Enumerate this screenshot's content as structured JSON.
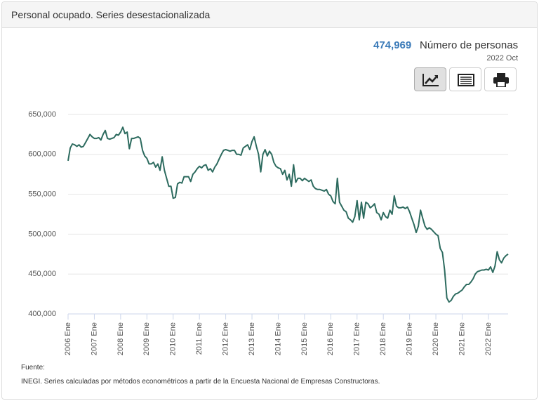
{
  "header": {
    "title": "Personal ocupado. Series desestacionalizada"
  },
  "summary": {
    "value": "474,969",
    "unit": "Número de personas",
    "date": "2022 Oct"
  },
  "chart_data": {
    "type": "line",
    "color": "#2d6b5f",
    "grid": true,
    "categories": [
      "2006 Ene",
      null,
      null,
      null,
      null,
      null,
      null,
      null,
      null,
      null,
      null,
      null,
      "2007 Ene",
      null,
      null,
      null,
      null,
      null,
      null,
      null,
      null,
      null,
      null,
      null,
      "2008 Ene",
      null,
      null,
      null,
      null,
      null,
      null,
      null,
      null,
      null,
      null,
      null,
      "2009 Ene",
      null,
      null,
      null,
      null,
      null,
      null,
      null,
      null,
      null,
      null,
      null,
      "2010 Ene",
      null,
      null,
      null,
      null,
      null,
      null,
      null,
      null,
      null,
      null,
      null,
      "2011 Ene",
      null,
      null,
      null,
      null,
      null,
      null,
      null,
      null,
      null,
      null,
      null,
      "2012 Ene",
      null,
      null,
      null,
      null,
      null,
      null,
      null,
      null,
      null,
      null,
      null,
      "2013 Ene",
      null,
      null,
      null,
      null,
      null,
      null,
      null,
      null,
      null,
      null,
      null,
      "2014 Ene",
      null,
      null,
      null,
      null,
      null,
      null,
      null,
      null,
      null,
      null,
      null,
      "2015 Ene",
      null,
      null,
      null,
      null,
      null,
      null,
      null,
      null,
      null,
      null,
      null,
      "2016 Ene",
      null,
      null,
      null,
      null,
      null,
      null,
      null,
      null,
      null,
      null,
      null,
      "2017 Ene",
      null,
      null,
      null,
      null,
      null,
      null,
      null,
      null,
      null,
      null,
      null,
      "2018 Ene",
      null,
      null,
      null,
      null,
      null,
      null,
      null,
      null,
      null,
      null,
      null,
      "2019 Ene",
      null,
      null,
      null,
      null,
      null,
      null,
      null,
      null,
      null,
      null,
      null,
      "2020 Ene",
      null,
      null,
      null,
      null,
      null,
      null,
      null,
      null,
      null,
      null,
      null,
      "2021 Ene",
      null,
      null,
      null,
      null,
      null,
      null,
      null,
      null,
      null,
      null,
      null,
      "2022 Ene",
      null,
      null,
      null,
      null,
      null,
      null,
      null,
      null,
      null
    ],
    "values": [
      592000,
      608000,
      613000,
      612000,
      610000,
      612000,
      609000,
      610000,
      615000,
      620000,
      625000,
      622000,
      620000,
      620000,
      621000,
      618000,
      625000,
      630000,
      620000,
      619000,
      620000,
      621000,
      625000,
      624000,
      628000,
      634000,
      626000,
      628000,
      607000,
      620000,
      620000,
      621000,
      622000,
      620000,
      605000,
      598000,
      595000,
      588000,
      588000,
      590000,
      584000,
      588000,
      580000,
      597000,
      580000,
      570000,
      560000,
      560000,
      545000,
      546000,
      563000,
      565000,
      564000,
      572000,
      572000,
      572000,
      566000,
      575000,
      578000,
      582000,
      585000,
      583000,
      586000,
      587000,
      580000,
      582000,
      578000,
      584000,
      588000,
      594000,
      600000,
      605000,
      606000,
      605000,
      604000,
      605000,
      605000,
      600000,
      600000,
      599000,
      608000,
      610000,
      612000,
      606000,
      616000,
      622000,
      610000,
      600000,
      578000,
      600000,
      606000,
      598000,
      604000,
      600000,
      590000,
      585000,
      583000,
      582000,
      575000,
      580000,
      568000,
      575000,
      560000,
      587000,
      565000,
      570000,
      570000,
      567000,
      570000,
      568000,
      566000,
      568000,
      560000,
      557000,
      556000,
      556000,
      555000,
      554000,
      556000,
      550000,
      548000,
      541000,
      538000,
      570000,
      540000,
      535000,
      530000,
      528000,
      520000,
      518000,
      515000,
      522000,
      542000,
      518000,
      540000,
      520000,
      540000,
      538000,
      533000,
      535000,
      538000,
      527000,
      525000,
      518000,
      527000,
      522000,
      520000,
      530000,
      525000,
      548000,
      535000,
      533000,
      533000,
      534000,
      532000,
      534000,
      528000,
      520000,
      512000,
      502000,
      510000,
      530000,
      520000,
      510000,
      506000,
      508000,
      506000,
      503000,
      500000,
      498000,
      482000,
      477000,
      455000,
      420000,
      415000,
      417000,
      422000,
      425000,
      426000,
      428000,
      430000,
      434000,
      437000,
      437000,
      440000,
      444000,
      450000,
      453000,
      454000,
      455000,
      455000,
      456000,
      455000,
      459000,
      452000,
      460000,
      478000,
      468000,
      464000,
      470000,
      473000,
      474969
    ],
    "ylim": [
      400000,
      650000
    ],
    "yticks": [
      {
        "value": 400000,
        "label": "400,000"
      },
      {
        "value": 450000,
        "label": "450,000"
      },
      {
        "value": 500000,
        "label": "500,000"
      },
      {
        "value": 550000,
        "label": "550,000"
      },
      {
        "value": 600000,
        "label": "600,000"
      },
      {
        "value": 650000,
        "label": "650,000"
      }
    ]
  },
  "footer": {
    "label": "Fuente:",
    "text": "INEGI. Series calculadas por métodos econométricos a partir de la Encuesta Nacional de Empresas Constructoras."
  }
}
